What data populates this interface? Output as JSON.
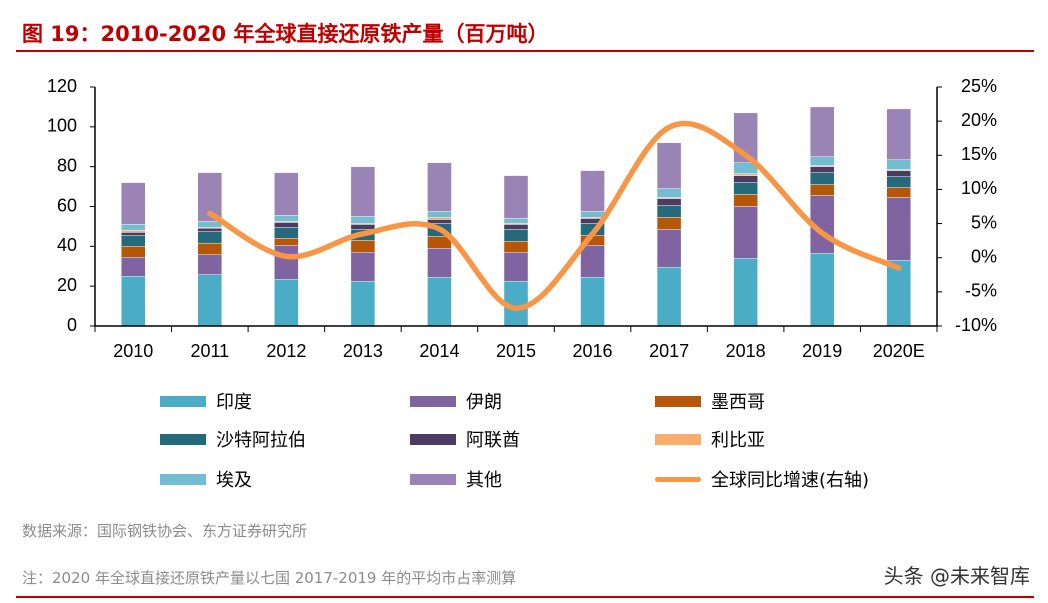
{
  "title": "图 19：2010-2020 年全球直接还原铁产量（百万吨）",
  "source": "数据来源：国际钢铁协会、东方证券研究所",
  "note": "注：2020 年全球直接还原铁产量以七国 2017-2019 年的平均市占率测算",
  "watermark": "头条 @未来智库",
  "chart_data": {
    "type": "bar",
    "stacked": true,
    "categories": [
      "2010",
      "2011",
      "2012",
      "2013",
      "2014",
      "2015",
      "2016",
      "2017",
      "2018",
      "2019",
      "2020E"
    ],
    "ylim": [
      0,
      120
    ],
    "yticks": [
      "0",
      "20",
      "40",
      "60",
      "80",
      "100",
      "120"
    ],
    "y2lim": [
      -10,
      25
    ],
    "y2ticks": [
      "-10%",
      "-5%",
      "0%",
      "5%",
      "10%",
      "15%",
      "20%",
      "25%"
    ],
    "legend_position": "bottom",
    "grid": false,
    "series": [
      {
        "name": "印度",
        "color": "#4bacc6",
        "values": [
          25,
          25.8,
          23.5,
          22.5,
          24.5,
          22.5,
          24.5,
          29.5,
          34,
          36.5,
          33
        ]
      },
      {
        "name": "伊朗",
        "color": "#8064a2",
        "values": [
          9.5,
          10,
          17,
          14.5,
          14.5,
          14.5,
          16,
          19,
          26,
          29,
          31.5
        ]
      },
      {
        "name": "墨西哥",
        "color": "#b65708",
        "values": [
          5.5,
          5.8,
          3.5,
          6,
          6,
          5.5,
          5,
          6,
          6,
          5.5,
          5
        ]
      },
      {
        "name": "沙特阿拉伯",
        "color": "#256a7a",
        "values": [
          5.5,
          5.8,
          5.5,
          5.5,
          6.5,
          6,
          6,
          6,
          6,
          6,
          5.5
        ]
      },
      {
        "name": "阿联酋",
        "color": "#4a3b63",
        "values": [
          1.5,
          1.7,
          2.5,
          2.5,
          2,
          2.5,
          2.5,
          3.5,
          3.5,
          3,
          3
        ]
      },
      {
        "name": "利比亚",
        "color": "#f9ac6b",
        "values": [
          1,
          0.4,
          0.5,
          0.5,
          1,
          0.5,
          0.5,
          0.5,
          1,
          0.5,
          0.5
        ]
      },
      {
        "name": "埃及",
        "color": "#72bdd1",
        "values": [
          3,
          3,
          3,
          3.5,
          3,
          2.5,
          3,
          4.5,
          5.5,
          4.5,
          5
        ]
      },
      {
        "name": "其他",
        "color": "#9a84b5",
        "values": [
          21,
          24.5,
          21.5,
          25,
          24.5,
          21.5,
          20.5,
          23,
          25,
          25,
          25.5
        ]
      }
    ],
    "line": {
      "name": "全球同比增速(右轴)",
      "color": "#f79646",
      "axis": "right",
      "values": [
        null,
        6.5,
        0.2,
        3.5,
        4.2,
        -7.4,
        3.5,
        19.1,
        15,
        3.6,
        -1.5
      ]
    }
  }
}
